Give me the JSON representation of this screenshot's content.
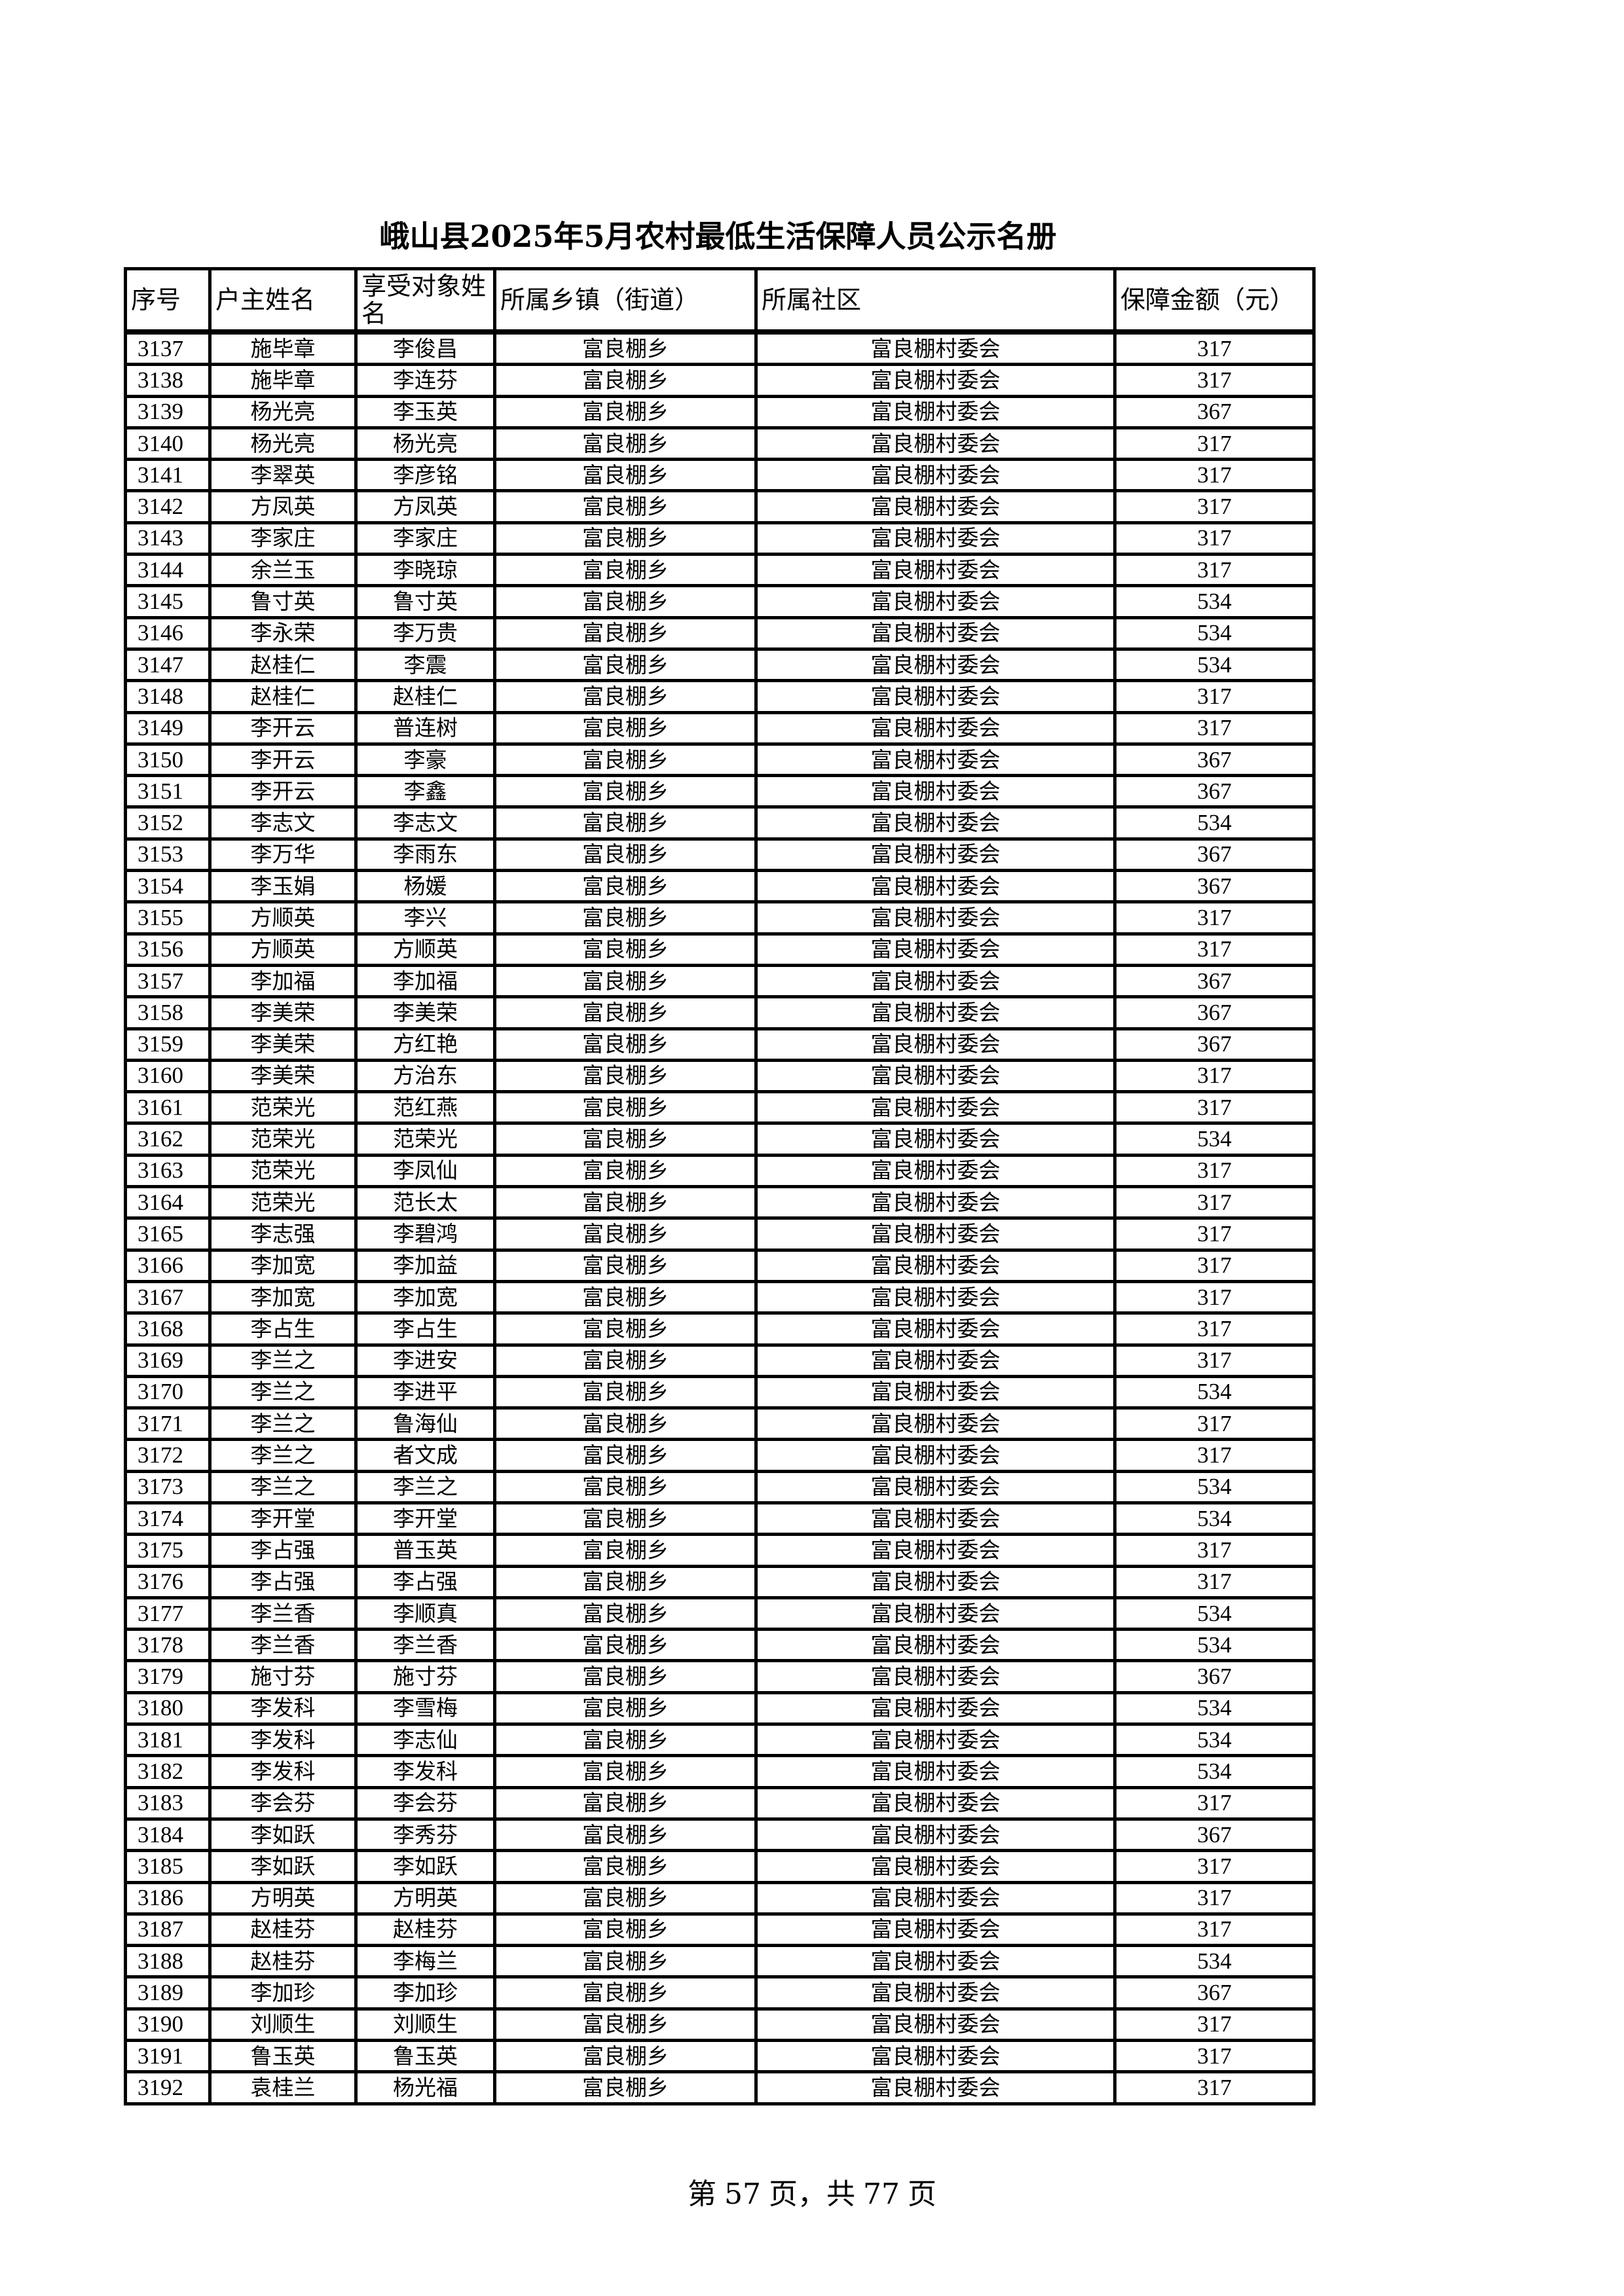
{
  "title": "峨山县2025年5月农村最低生活保障人员公示名册",
  "headers": [
    "序号",
    "户主姓名",
    "享受对象姓名",
    "所属乡镇（街道）",
    "所属社区",
    "保障金额（元）"
  ],
  "rows": [
    [
      "3137",
      "施毕章",
      "李俊昌",
      "富良棚乡",
      "富良棚村委会",
      "317"
    ],
    [
      "3138",
      "施毕章",
      "李连芬",
      "富良棚乡",
      "富良棚村委会",
      "317"
    ],
    [
      "3139",
      "杨光亮",
      "李玉英",
      "富良棚乡",
      "富良棚村委会",
      "367"
    ],
    [
      "3140",
      "杨光亮",
      "杨光亮",
      "富良棚乡",
      "富良棚村委会",
      "317"
    ],
    [
      "3141",
      "李翠英",
      "李彦铭",
      "富良棚乡",
      "富良棚村委会",
      "317"
    ],
    [
      "3142",
      "方凤英",
      "方凤英",
      "富良棚乡",
      "富良棚村委会",
      "317"
    ],
    [
      "3143",
      "李家庄",
      "李家庄",
      "富良棚乡",
      "富良棚村委会",
      "317"
    ],
    [
      "3144",
      "余兰玉",
      "李晓琼",
      "富良棚乡",
      "富良棚村委会",
      "317"
    ],
    [
      "3145",
      "鲁寸英",
      "鲁寸英",
      "富良棚乡",
      "富良棚村委会",
      "534"
    ],
    [
      "3146",
      "李永荣",
      "李万贵",
      "富良棚乡",
      "富良棚村委会",
      "534"
    ],
    [
      "3147",
      "赵桂仁",
      "李震",
      "富良棚乡",
      "富良棚村委会",
      "534"
    ],
    [
      "3148",
      "赵桂仁",
      "赵桂仁",
      "富良棚乡",
      "富良棚村委会",
      "317"
    ],
    [
      "3149",
      "李开云",
      "普连树",
      "富良棚乡",
      "富良棚村委会",
      "317"
    ],
    [
      "3150",
      "李开云",
      "李豪",
      "富良棚乡",
      "富良棚村委会",
      "367"
    ],
    [
      "3151",
      "李开云",
      "李鑫",
      "富良棚乡",
      "富良棚村委会",
      "367"
    ],
    [
      "3152",
      "李志文",
      "李志文",
      "富良棚乡",
      "富良棚村委会",
      "534"
    ],
    [
      "3153",
      "李万华",
      "李雨东",
      "富良棚乡",
      "富良棚村委会",
      "367"
    ],
    [
      "3154",
      "李玉娟",
      "杨媛",
      "富良棚乡",
      "富良棚村委会",
      "367"
    ],
    [
      "3155",
      "方顺英",
      "李兴",
      "富良棚乡",
      "富良棚村委会",
      "317"
    ],
    [
      "3156",
      "方顺英",
      "方顺英",
      "富良棚乡",
      "富良棚村委会",
      "317"
    ],
    [
      "3157",
      "李加福",
      "李加福",
      "富良棚乡",
      "富良棚村委会",
      "367"
    ],
    [
      "3158",
      "李美荣",
      "李美荣",
      "富良棚乡",
      "富良棚村委会",
      "367"
    ],
    [
      "3159",
      "李美荣",
      "方红艳",
      "富良棚乡",
      "富良棚村委会",
      "367"
    ],
    [
      "3160",
      "李美荣",
      "方治东",
      "富良棚乡",
      "富良棚村委会",
      "317"
    ],
    [
      "3161",
      "范荣光",
      "范红燕",
      "富良棚乡",
      "富良棚村委会",
      "317"
    ],
    [
      "3162",
      "范荣光",
      "范荣光",
      "富良棚乡",
      "富良棚村委会",
      "534"
    ],
    [
      "3163",
      "范荣光",
      "李凤仙",
      "富良棚乡",
      "富良棚村委会",
      "317"
    ],
    [
      "3164",
      "范荣光",
      "范长太",
      "富良棚乡",
      "富良棚村委会",
      "317"
    ],
    [
      "3165",
      "李志强",
      "李碧鸿",
      "富良棚乡",
      "富良棚村委会",
      "317"
    ],
    [
      "3166",
      "李加宽",
      "李加益",
      "富良棚乡",
      "富良棚村委会",
      "317"
    ],
    [
      "3167",
      "李加宽",
      "李加宽",
      "富良棚乡",
      "富良棚村委会",
      "317"
    ],
    [
      "3168",
      "李占生",
      "李占生",
      "富良棚乡",
      "富良棚村委会",
      "317"
    ],
    [
      "3169",
      "李兰之",
      "李进安",
      "富良棚乡",
      "富良棚村委会",
      "317"
    ],
    [
      "3170",
      "李兰之",
      "李进平",
      "富良棚乡",
      "富良棚村委会",
      "534"
    ],
    [
      "3171",
      "李兰之",
      "鲁海仙",
      "富良棚乡",
      "富良棚村委会",
      "317"
    ],
    [
      "3172",
      "李兰之",
      "者文成",
      "富良棚乡",
      "富良棚村委会",
      "317"
    ],
    [
      "3173",
      "李兰之",
      "李兰之",
      "富良棚乡",
      "富良棚村委会",
      "534"
    ],
    [
      "3174",
      "李开堂",
      "李开堂",
      "富良棚乡",
      "富良棚村委会",
      "534"
    ],
    [
      "3175",
      "李占强",
      "普玉英",
      "富良棚乡",
      "富良棚村委会",
      "317"
    ],
    [
      "3176",
      "李占强",
      "李占强",
      "富良棚乡",
      "富良棚村委会",
      "317"
    ],
    [
      "3177",
      "李兰香",
      "李顺真",
      "富良棚乡",
      "富良棚村委会",
      "534"
    ],
    [
      "3178",
      "李兰香",
      "李兰香",
      "富良棚乡",
      "富良棚村委会",
      "534"
    ],
    [
      "3179",
      "施寸芬",
      "施寸芬",
      "富良棚乡",
      "富良棚村委会",
      "367"
    ],
    [
      "3180",
      "李发科",
      "李雪梅",
      "富良棚乡",
      "富良棚村委会",
      "534"
    ],
    [
      "3181",
      "李发科",
      "李志仙",
      "富良棚乡",
      "富良棚村委会",
      "534"
    ],
    [
      "3182",
      "李发科",
      "李发科",
      "富良棚乡",
      "富良棚村委会",
      "534"
    ],
    [
      "3183",
      "李会芬",
      "李会芬",
      "富良棚乡",
      "富良棚村委会",
      "317"
    ],
    [
      "3184",
      "李如跃",
      "李秀芬",
      "富良棚乡",
      "富良棚村委会",
      "367"
    ],
    [
      "3185",
      "李如跃",
      "李如跃",
      "富良棚乡",
      "富良棚村委会",
      "317"
    ],
    [
      "3186",
      "方明英",
      "方明英",
      "富良棚乡",
      "富良棚村委会",
      "317"
    ],
    [
      "3187",
      "赵桂芬",
      "赵桂芬",
      "富良棚乡",
      "富良棚村委会",
      "317"
    ],
    [
      "3188",
      "赵桂芬",
      "李梅兰",
      "富良棚乡",
      "富良棚村委会",
      "534"
    ],
    [
      "3189",
      "李加珍",
      "李加珍",
      "富良棚乡",
      "富良棚村委会",
      "367"
    ],
    [
      "3190",
      "刘顺生",
      "刘顺生",
      "富良棚乡",
      "富良棚村委会",
      "317"
    ],
    [
      "3191",
      "鲁玉英",
      "鲁玉英",
      "富良棚乡",
      "富良棚村委会",
      "317"
    ],
    [
      "3192",
      "袁桂兰",
      "杨光福",
      "富良棚乡",
      "富良棚村委会",
      "317"
    ]
  ],
  "footer": {
    "prefix": "第",
    "page": "57",
    "mid": "页，共",
    "total": "77",
    "suffix": "页"
  }
}
